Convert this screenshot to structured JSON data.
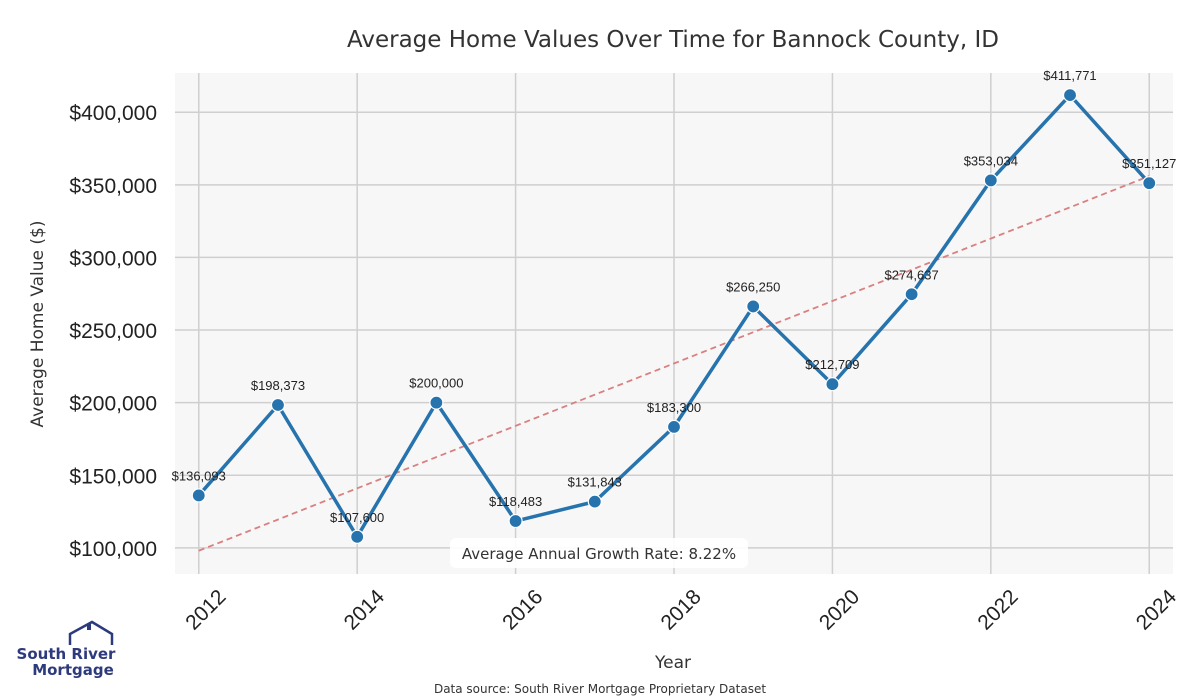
{
  "chart_data": {
    "type": "line",
    "title": "Average Home Values Over Time for Bannock County, ID",
    "xlabel": "Year",
    "ylabel": "Average Home Value ($)",
    "x": [
      2012,
      2013,
      2014,
      2015,
      2016,
      2017,
      2018,
      2019,
      2020,
      2021,
      2022,
      2023,
      2024
    ],
    "series": [
      {
        "values": [
          136093,
          198373,
          107600,
          200000,
          118483,
          131843,
          183300,
          266250,
          212709,
          274637,
          353034,
          411771,
          351127
        ]
      }
    ],
    "data_labels": [
      "$136,093",
      "$198,373",
      "$107,600",
      "$200,000",
      "$118,483",
      "$131,843",
      "$183,300",
      "$266,250",
      "$212,709",
      "$274,637",
      "$353,034",
      "$411,771",
      "$351,127"
    ],
    "trendline": {
      "start": [
        2012,
        98000
      ],
      "end": [
        2024,
        356000
      ],
      "style": "dashed"
    },
    "x_ticks": [
      "2012",
      "2014",
      "2016",
      "2018",
      "2020",
      "2022",
      "2024"
    ],
    "x_tick_values": [
      2012,
      2014,
      2016,
      2018,
      2020,
      2022,
      2024
    ],
    "y_ticks": [
      "$100,000",
      "$150,000",
      "$200,000",
      "$250,000",
      "$300,000",
      "$350,000",
      "$400,000"
    ],
    "y_tick_values": [
      100000,
      150000,
      200000,
      250000,
      300000,
      350000,
      400000
    ],
    "xlim": [
      2011.7,
      2024.3
    ],
    "ylim": [
      82000,
      427000
    ],
    "grid": true,
    "annotation": "Average Annual Growth Rate: 8.22%",
    "source": "Data source: South River Mortgage Proprietary Dataset",
    "colors": {
      "line": "#2673ad",
      "trend": "#d98080",
      "grid": "#cfcfcf",
      "plot_bg": "#f7f7f7",
      "logo": "#2d3a7c"
    }
  },
  "logo": {
    "line1": "South River",
    "line2": "Mortgage"
  }
}
